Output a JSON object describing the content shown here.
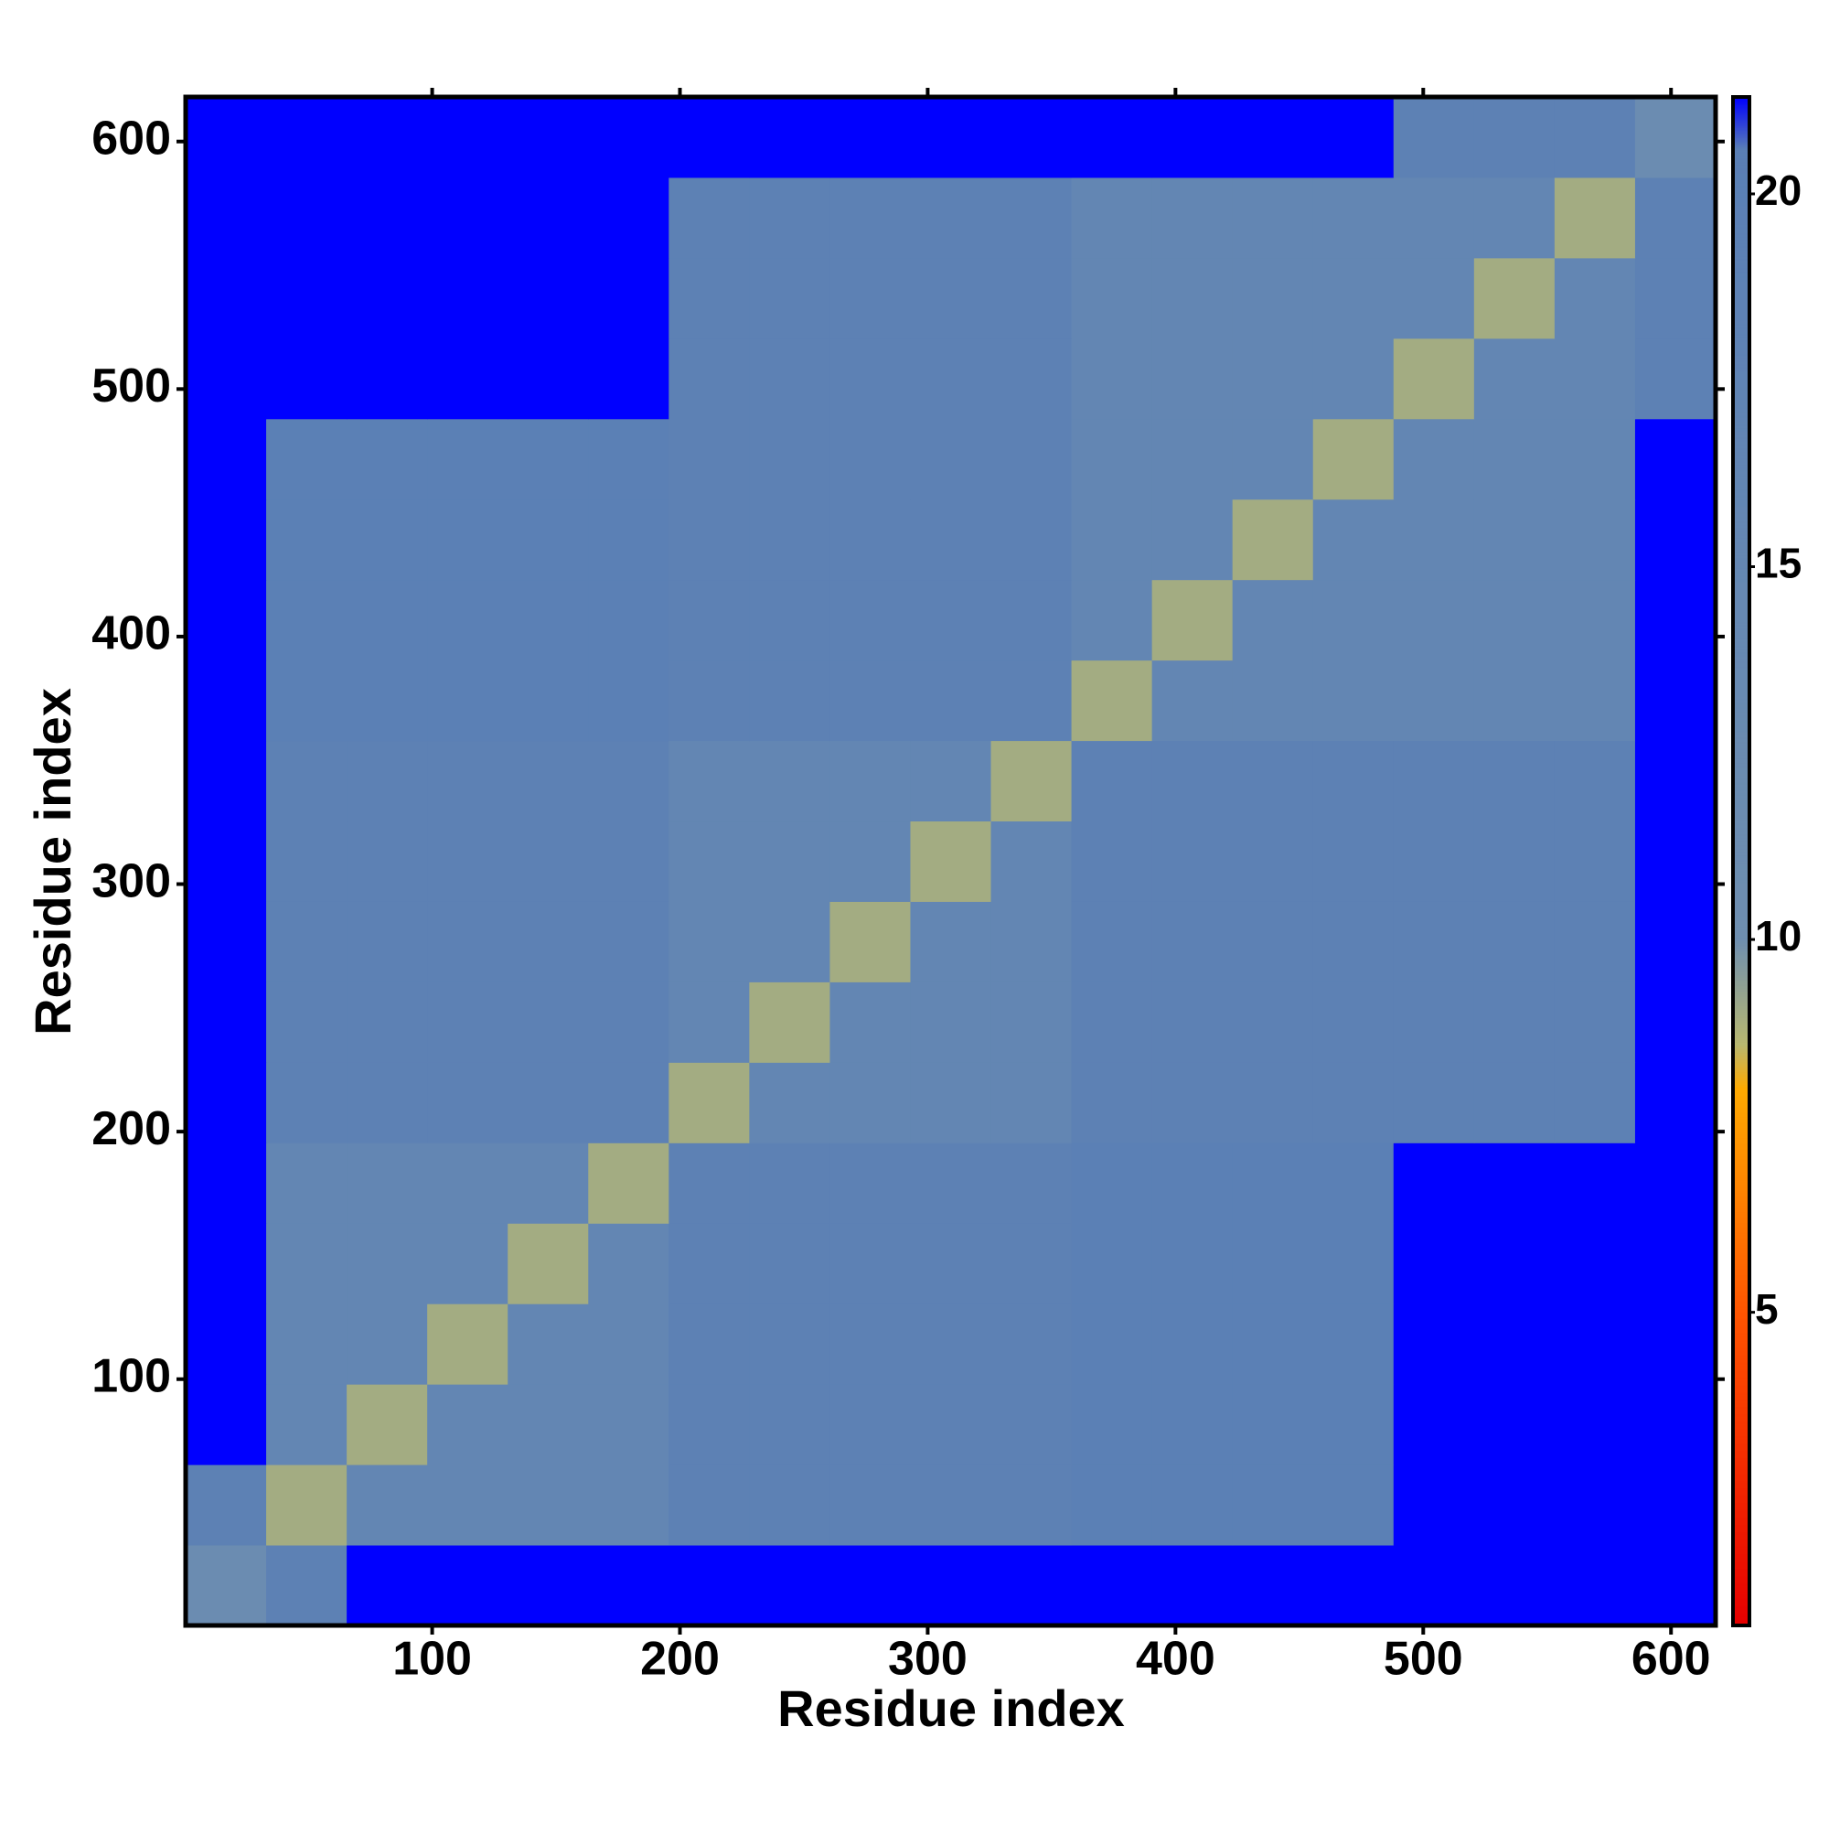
{
  "chart_data": {
    "type": "heatmap",
    "xlabel": "Residue index",
    "ylabel": "Residue index",
    "xlim": [
      0.5,
      618
    ],
    "ylim": [
      0.5,
      618
    ],
    "xticks": [
      100,
      200,
      300,
      400,
      500,
      600
    ],
    "yticks": [
      100,
      200,
      300,
      400,
      500,
      600
    ],
    "bins": [
      0.5,
      33,
      65.5,
      98,
      130.5,
      163,
      195.5,
      228,
      260.5,
      293,
      325.5,
      358,
      390.5,
      423,
      455.5,
      488,
      520.5,
      553,
      585.5,
      618
    ],
    "z": [
      [
        12,
        19,
        21.3,
        21.3,
        21.3,
        21.3,
        21.3,
        21.3,
        21.3,
        21.3,
        21.3,
        21.3,
        21.3,
        21.3,
        21.3,
        21.3,
        21.3,
        21.3,
        21.3
      ],
      [
        19,
        9,
        16,
        16,
        16,
        16,
        19,
        19,
        19,
        19,
        19,
        20,
        20,
        20,
        20,
        21.3,
        21.3,
        21.3,
        21.3
      ],
      [
        21.3,
        16,
        9,
        16,
        16,
        16,
        19,
        19,
        19,
        19,
        19,
        20,
        20,
        20,
        20,
        21.3,
        21.3,
        21.3,
        21.3
      ],
      [
        21.3,
        16,
        16,
        9,
        16,
        16,
        19,
        19,
        19,
        19,
        19,
        20,
        20,
        20,
        20,
        21.3,
        21.3,
        21.3,
        21.3
      ],
      [
        21.3,
        16,
        16,
        16,
        9,
        16,
        19,
        19,
        19,
        19,
        19,
        20,
        20,
        20,
        20,
        21.3,
        21.3,
        21.3,
        21.3
      ],
      [
        21.3,
        16,
        16,
        16,
        16,
        9,
        19,
        19,
        19,
        19,
        19,
        20,
        20,
        20,
        20,
        21.3,
        21.3,
        21.3,
        21.3
      ],
      [
        21.3,
        19,
        19,
        19,
        19,
        19,
        9,
        16,
        16,
        16,
        16,
        19,
        19,
        19,
        19,
        19,
        19,
        19,
        21.3
      ],
      [
        21.3,
        19,
        19,
        19,
        19,
        19,
        16,
        9,
        16,
        16,
        16,
        19,
        19,
        19,
        19,
        19,
        19,
        19,
        21.3
      ],
      [
        21.3,
        19,
        19,
        19,
        19,
        19,
        16,
        16,
        9,
        16,
        16,
        19,
        19,
        19,
        19,
        19,
        19,
        19,
        21.3
      ],
      [
        21.3,
        19,
        19,
        19,
        19,
        19,
        16,
        16,
        16,
        9,
        16,
        19,
        19,
        19,
        19,
        19,
        19,
        19,
        21.3
      ],
      [
        21.3,
        19,
        19,
        19,
        19,
        19,
        16,
        16,
        16,
        16,
        9,
        19,
        19,
        19,
        19,
        19,
        19,
        19,
        21.3
      ],
      [
        21.3,
        20,
        20,
        20,
        20,
        20,
        19,
        19,
        19,
        19,
        19,
        9,
        16,
        16,
        16,
        16,
        16,
        16,
        21.3
      ],
      [
        21.3,
        20,
        20,
        20,
        20,
        20,
        19,
        19,
        19,
        19,
        19,
        16,
        9,
        16,
        16,
        16,
        16,
        16,
        21.3
      ],
      [
        21.3,
        20,
        20,
        20,
        20,
        20,
        19,
        19,
        19,
        19,
        19,
        16,
        16,
        9,
        16,
        16,
        16,
        16,
        21.3
      ],
      [
        21.3,
        20,
        20,
        20,
        20,
        20,
        19,
        19,
        19,
        19,
        19,
        16,
        16,
        16,
        9,
        16,
        16,
        16,
        21.3
      ],
      [
        21.3,
        21.3,
        21.3,
        21.3,
        21.3,
        21.3,
        19,
        19,
        19,
        19,
        19,
        16,
        16,
        16,
        16,
        9,
        16,
        16,
        19
      ],
      [
        21.3,
        21.3,
        21.3,
        21.3,
        21.3,
        21.3,
        19,
        19,
        19,
        19,
        19,
        16,
        16,
        16,
        16,
        16,
        9,
        16,
        19
      ],
      [
        21.3,
        21.3,
        21.3,
        21.3,
        21.3,
        21.3,
        19,
        19,
        19,
        19,
        19,
        16,
        16,
        16,
        16,
        16,
        16,
        9,
        19
      ],
      [
        21.3,
        21.3,
        21.3,
        21.3,
        21.3,
        21.3,
        21.3,
        21.3,
        21.3,
        21.3,
        21.3,
        21.3,
        21.3,
        21.3,
        21.3,
        19,
        19,
        19,
        12
      ]
    ],
    "zlim": [
      0.8,
      21.3
    ],
    "zticks": [
      5,
      10,
      15,
      20
    ],
    "colorscale": [
      [
        0.8,
        "#e60000"
      ],
      [
        5,
        "#ff5500"
      ],
      [
        8,
        "#ffaa00"
      ],
      [
        8.6,
        "#b8b870"
      ],
      [
        10,
        "#6f8fb0"
      ],
      [
        20.6,
        "#5a7fb5"
      ],
      [
        21.3,
        "#0000ff"
      ]
    ]
  }
}
